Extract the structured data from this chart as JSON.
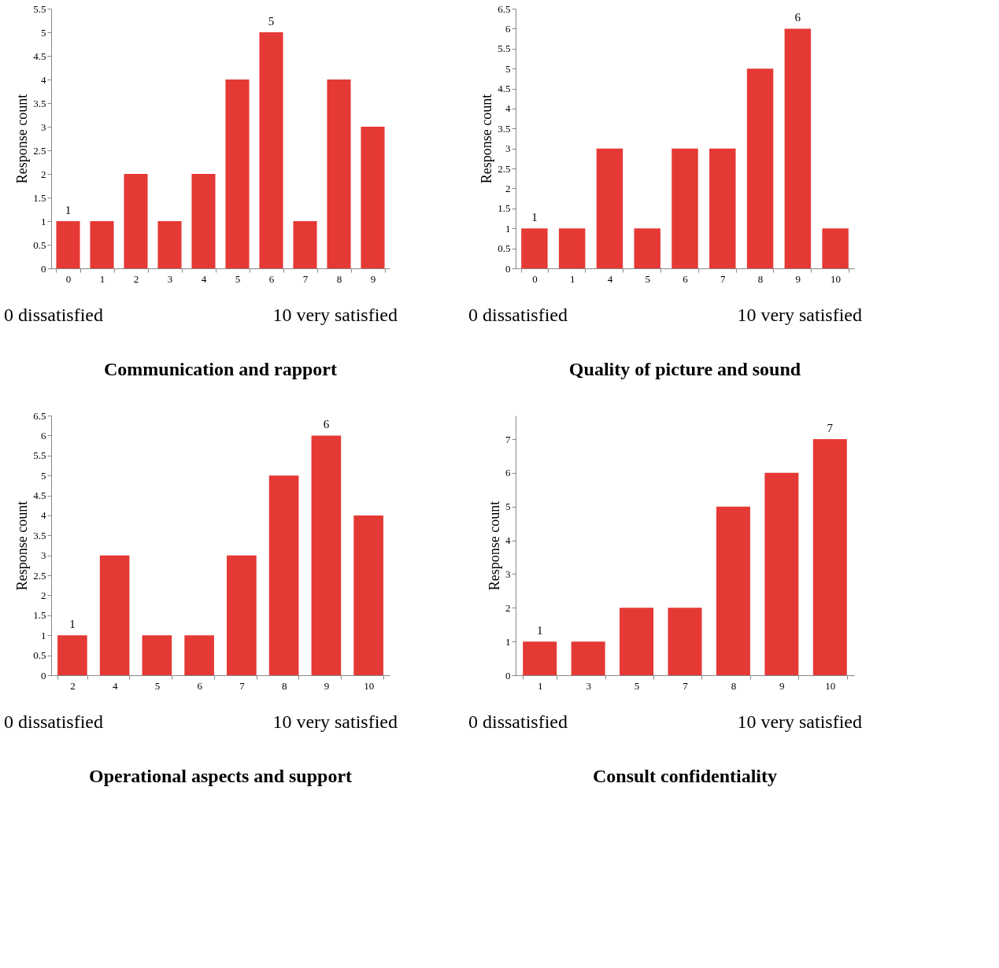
{
  "chart_data": [
    {
      "type": "bar",
      "title": "Communication and rapport",
      "ylabel": "Response count",
      "categories": [
        "0",
        "1",
        "2",
        "3",
        "4",
        "5",
        "6",
        "7",
        "8",
        "9"
      ],
      "values": [
        1,
        1,
        2,
        1,
        2,
        4,
        5,
        1,
        4,
        3
      ],
      "value_labels": [
        "1",
        null,
        null,
        null,
        null,
        null,
        "5",
        null,
        null,
        null
      ],
      "color": "#e53935",
      "ylim": [
        0,
        5.5
      ],
      "yticks": [
        0,
        0.5,
        1,
        1.5,
        2,
        2.5,
        3,
        3.5,
        4,
        4.5,
        5,
        5.5
      ],
      "grid": false,
      "legend": false,
      "annotations": [
        "0 dissatisfied",
        "10 very satisfied"
      ]
    },
    {
      "type": "bar",
      "title": "Quality of picture and sound",
      "ylabel": "Response count",
      "categories": [
        "0",
        "1",
        "4",
        "5",
        "6",
        "7",
        "8",
        "9",
        "10"
      ],
      "values": [
        1,
        1,
        3,
        1,
        3,
        3,
        5,
        6,
        1
      ],
      "value_labels": [
        "1",
        null,
        null,
        null,
        null,
        null,
        null,
        "6",
        null
      ],
      "color": "#e53935",
      "ylim": [
        0,
        6.5
      ],
      "yticks": [
        0,
        0.5,
        1,
        1.5,
        2,
        2.5,
        3,
        3.5,
        4,
        4.5,
        5,
        5.5,
        6,
        6.5
      ],
      "grid": false,
      "legend": false,
      "annotations": [
        "0 dissatisfied",
        "10 very satisfied"
      ]
    },
    {
      "type": "bar",
      "title": "Operational aspects and support",
      "ylabel": "Response count",
      "categories": [
        "2",
        "4",
        "5",
        "6",
        "7",
        "8",
        "9",
        "10"
      ],
      "values": [
        1,
        3,
        1,
        1,
        3,
        5,
        6,
        4
      ],
      "value_labels": [
        "1",
        null,
        null,
        null,
        null,
        null,
        "6",
        null
      ],
      "color": "#e53935",
      "ylim": [
        0,
        6.5
      ],
      "yticks": [
        0,
        0.5,
        1,
        1.5,
        2,
        2.5,
        3,
        3.5,
        4,
        4.5,
        5,
        5.5,
        6,
        6.5
      ],
      "grid": false,
      "legend": false,
      "annotations": [
        "0 dissatisfied",
        "10 very satisfied"
      ]
    },
    {
      "type": "bar",
      "title": "Consult confidentiality",
      "ylabel": "Response count",
      "categories": [
        "1",
        "3",
        "5",
        "7",
        "8",
        "9",
        "10"
      ],
      "values": [
        1,
        1,
        2,
        2,
        5,
        6,
        7
      ],
      "value_labels": [
        "1",
        null,
        null,
        null,
        null,
        null,
        "7"
      ],
      "color": "#e53935",
      "ylim": [
        0,
        7.7
      ],
      "yticks": [
        0,
        1,
        2,
        3,
        4,
        5,
        6,
        7
      ],
      "grid": false,
      "legend": false,
      "annotations": [
        "0 dissatisfied",
        "10 very satisfied"
      ]
    }
  ]
}
